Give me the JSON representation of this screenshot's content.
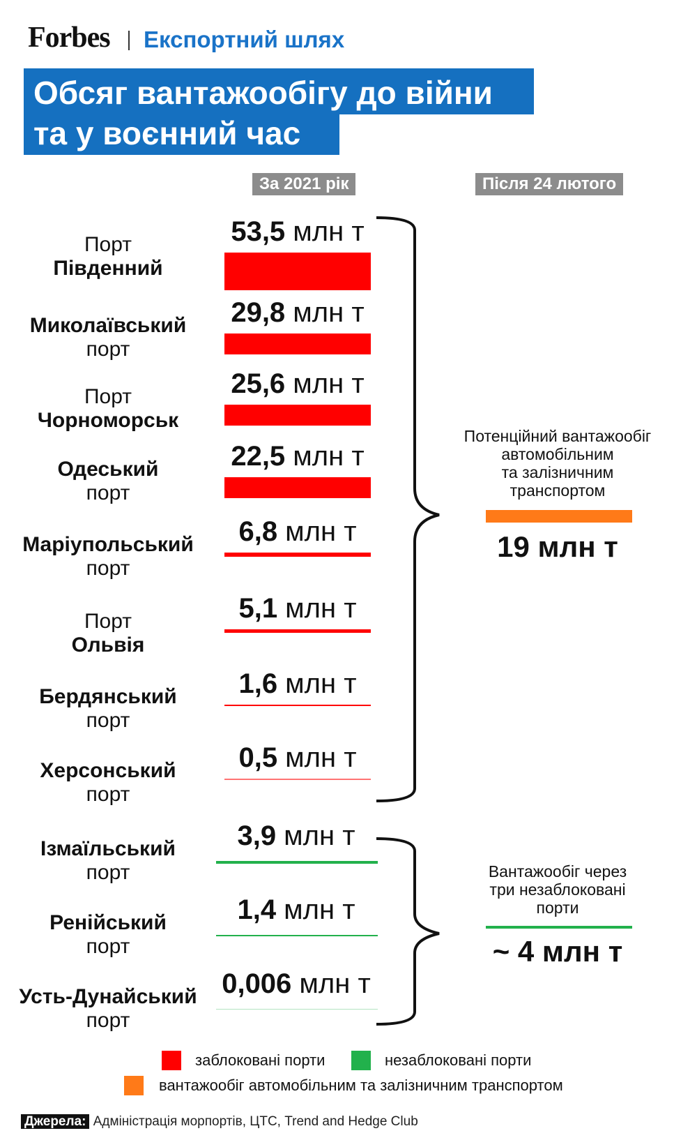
{
  "header": {
    "brand": "Forbes",
    "section": "Експортний шлях",
    "title_line1": "Обсяг вантажообігу до війни",
    "title_line2": "та у воєнний час",
    "col_2021": "За 2021 рік",
    "col_after": "Після 24 лютого"
  },
  "colors": {
    "blocked": "#ff0000",
    "unblocked": "#22b14c",
    "road_rail": "#ff7a18",
    "title_bg": "#1570c0",
    "header_bg": "#8c8c8c"
  },
  "unit": "млн т",
  "chart_data": {
    "type": "bar",
    "orientation": "horizontal",
    "unit": "млн т",
    "series": [
      {
        "name": "заблоковані порти",
        "status": "blocked",
        "ports": [
          {
            "pre": "Порт",
            "name": "Південний",
            "post": "",
            "value": 53.5,
            "label": "53,5"
          },
          {
            "pre": "",
            "name": "Миколаївський",
            "post": "порт",
            "value": 29.8,
            "label": "29,8"
          },
          {
            "pre": "Порт",
            "name": "Чорноморськ",
            "post": "",
            "value": 25.6,
            "label": "25,6"
          },
          {
            "pre": "",
            "name": "Одеський",
            "post": "порт",
            "value": 22.5,
            "label": "22,5"
          },
          {
            "pre": "",
            "name": "Маріупольський",
            "post": "порт",
            "value": 6.8,
            "label": "6,8"
          },
          {
            "pre": "Порт",
            "name": "Ольвія",
            "post": "",
            "value": 5.1,
            "label": "5,1"
          },
          {
            "pre": "",
            "name": "Бердянський",
            "post": "порт",
            "value": 1.6,
            "label": "1,6"
          },
          {
            "pre": "",
            "name": "Херсонський",
            "post": "порт",
            "value": 0.5,
            "label": "0,5"
          }
        ]
      },
      {
        "name": "незаблоковані порти",
        "status": "unblocked",
        "ports": [
          {
            "pre": "",
            "name": "Ізмаїльський",
            "post": "порт",
            "value": 3.9,
            "label": "3,9"
          },
          {
            "pre": "",
            "name": "Ренійський",
            "post": "порт",
            "value": 1.4,
            "label": "1,4"
          },
          {
            "pre": "",
            "name": "Усть-Дунайський",
            "post": "порт",
            "value": 0.006,
            "label": "0,006"
          }
        ]
      }
    ],
    "after_feb24": [
      {
        "text_lines": [
          "Потенційний вантажообіг",
          "автомобільним",
          "та залізничним",
          "транспортом"
        ],
        "value": 19,
        "label": "19 млн т",
        "status": "road_rail"
      },
      {
        "text_lines": [
          "Вантажообіг через",
          "три незаблоковані",
          "порти"
        ],
        "value": 4,
        "label": "~ 4 млн т",
        "status": "unblocked"
      }
    ]
  },
  "legend": {
    "blocked": "заблоковані порти",
    "unblocked": "незаблоковані порти",
    "road_rail": "вантажообіг автомобільним та залізничним транспортом"
  },
  "source": {
    "label": "Джерела:",
    "text": "Адміністрація морпортів, ЦТС, Trend and Hedge Club"
  }
}
